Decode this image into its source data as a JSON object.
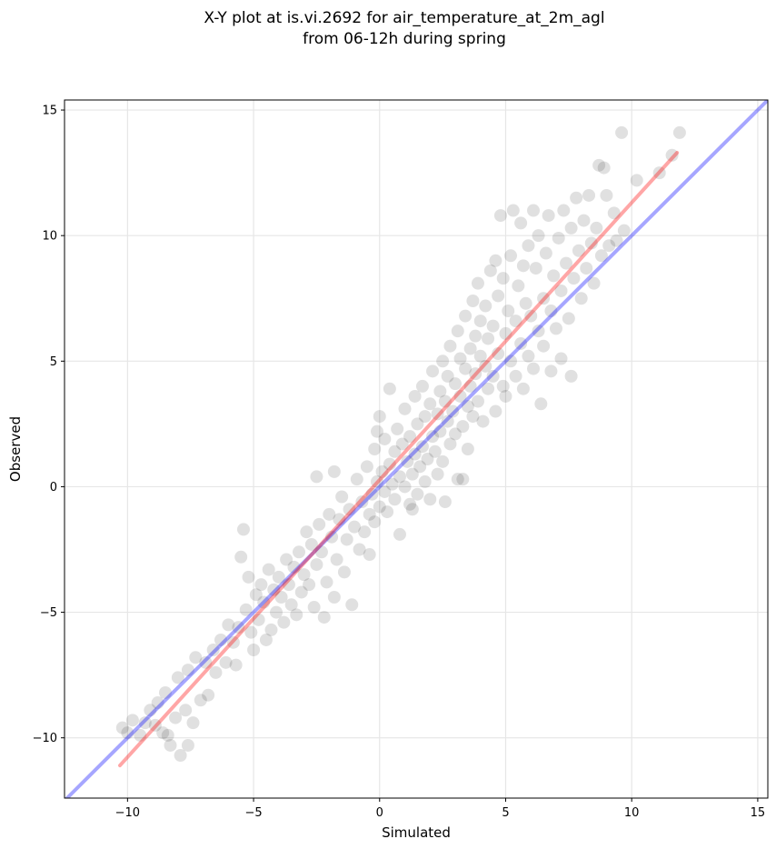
{
  "chart_data": {
    "type": "scatter",
    "title_line1": "X-Y plot at is.vi.2692 for air_temperature_at_2m_agl",
    "title_line2": "from 06-12h during spring",
    "xlabel": "Simulated",
    "ylabel": "Observed",
    "xlim": [
      -12.5,
      15.4
    ],
    "ylim": [
      -12.4,
      15.4
    ],
    "xticks": [
      -10,
      -5,
      0,
      5,
      10,
      15
    ],
    "yticks": [
      -10,
      -5,
      0,
      5,
      10,
      15
    ],
    "xtick_labels": [
      "−10",
      "−5",
      "0",
      "5",
      "10",
      "15"
    ],
    "ytick_labels": [
      "−10",
      "−5",
      "0",
      "5",
      "10",
      "15"
    ],
    "grid": true,
    "point_color": "#000000",
    "identity_line": {
      "color": "#0000ff",
      "from": [
        -12.5,
        -12.5
      ],
      "to": [
        15.4,
        15.4
      ]
    },
    "fit_line": {
      "color": "#ff0000",
      "from": [
        -10.3,
        -11.1
      ],
      "to": [
        11.8,
        13.3
      ]
    },
    "series": [
      {
        "points": [
          [
            -10.2,
            -9.6
          ],
          [
            -10.0,
            -9.8
          ],
          [
            -9.8,
            -9.3
          ],
          [
            -9.5,
            -9.9
          ],
          [
            -9.3,
            -9.4
          ],
          [
            -9.1,
            -8.9
          ],
          [
            -8.9,
            -9.5
          ],
          [
            -8.8,
            -8.6
          ],
          [
            -8.6,
            -9.8
          ],
          [
            -8.5,
            -8.2
          ],
          [
            -8.3,
            -10.3
          ],
          [
            -8.4,
            -9.9
          ],
          [
            -8.1,
            -9.2
          ],
          [
            -8.0,
            -7.6
          ],
          [
            -7.9,
            -10.7
          ],
          [
            -7.7,
            -8.9
          ],
          [
            -7.6,
            -10.3
          ],
          [
            -7.4,
            -9.4
          ],
          [
            -7.6,
            -7.3
          ],
          [
            -7.3,
            -6.8
          ],
          [
            -7.1,
            -8.5
          ],
          [
            -6.9,
            -7.0
          ],
          [
            -6.8,
            -8.3
          ],
          [
            -6.6,
            -6.5
          ],
          [
            -6.5,
            -7.4
          ],
          [
            -6.3,
            -6.1
          ],
          [
            -6.1,
            -7.0
          ],
          [
            -6.0,
            -5.5
          ],
          [
            -5.8,
            -6.2
          ],
          [
            -5.7,
            -7.1
          ],
          [
            -5.6,
            -5.6
          ],
          [
            -5.5,
            -2.8
          ],
          [
            -5.4,
            -1.7
          ],
          [
            -5.3,
            -4.9
          ],
          [
            -5.2,
            -3.6
          ],
          [
            -5.1,
            -5.8
          ],
          [
            -5.0,
            -6.5
          ],
          [
            -4.9,
            -4.3
          ],
          [
            -4.8,
            -5.3
          ],
          [
            -4.7,
            -3.9
          ],
          [
            -4.6,
            -4.6
          ],
          [
            -4.5,
            -6.1
          ],
          [
            -4.4,
            -3.3
          ],
          [
            -4.3,
            -5.7
          ],
          [
            -4.2,
            -4.1
          ],
          [
            -4.1,
            -5.0
          ],
          [
            -4.0,
            -3.6
          ],
          [
            -3.9,
            -4.4
          ],
          [
            -3.8,
            -5.4
          ],
          [
            -3.7,
            -2.9
          ],
          [
            -3.6,
            -3.9
          ],
          [
            -3.5,
            -4.7
          ],
          [
            -3.4,
            -3.2
          ],
          [
            -3.3,
            -5.1
          ],
          [
            -3.2,
            -2.6
          ],
          [
            -3.1,
            -4.2
          ],
          [
            -3.0,
            -3.5
          ],
          [
            -2.9,
            -1.8
          ],
          [
            -2.8,
            -3.9
          ],
          [
            -2.7,
            -2.3
          ],
          [
            -2.6,
            -4.8
          ],
          [
            -2.5,
            -3.1
          ],
          [
            -2.5,
            0.4
          ],
          [
            -2.4,
            -1.5
          ],
          [
            -2.3,
            -2.6
          ],
          [
            -2.2,
            -5.2
          ],
          [
            -2.1,
            -3.8
          ],
          [
            -2.0,
            -1.1
          ],
          [
            -1.9,
            -2.0
          ],
          [
            -1.8,
            -4.4
          ],
          [
            -1.8,
            0.6
          ],
          [
            -1.7,
            -2.9
          ],
          [
            -1.6,
            -1.3
          ],
          [
            -1.5,
            -0.4
          ],
          [
            -1.4,
            -3.4
          ],
          [
            -1.3,
            -2.1
          ],
          [
            -1.2,
            -0.9
          ],
          [
            -1.1,
            -4.7
          ],
          [
            -1.0,
            -1.6
          ],
          [
            -0.9,
            0.3
          ],
          [
            -0.8,
            -2.5
          ],
          [
            -0.7,
            -0.6
          ],
          [
            -0.6,
            -1.8
          ],
          [
            -0.5,
            0.8
          ],
          [
            -0.4,
            -1.1
          ],
          [
            -0.4,
            -2.7
          ],
          [
            -0.3,
            -0.3
          ],
          [
            -0.2,
            1.5
          ],
          [
            -0.2,
            -1.4
          ],
          [
            -0.1,
            0.2
          ],
          [
            0.0,
            -0.8
          ],
          [
            0.0,
            2.8
          ],
          [
            0.1,
            0.6
          ],
          [
            0.2,
            -0.2
          ],
          [
            0.2,
            1.9
          ],
          [
            0.3,
            -1.0
          ],
          [
            0.4,
            0.9
          ],
          [
            0.4,
            3.9
          ],
          [
            0.5,
            0.1
          ],
          [
            0.6,
            1.4
          ],
          [
            0.6,
            -0.5
          ],
          [
            0.7,
            2.3
          ],
          [
            0.8,
            0.4
          ],
          [
            0.8,
            -1.9
          ],
          [
            0.9,
            1.7
          ],
          [
            1.0,
            0.0
          ],
          [
            1.0,
            3.1
          ],
          [
            1.1,
            1.0
          ],
          [
            1.2,
            -0.7
          ],
          [
            1.2,
            2.0
          ],
          [
            1.3,
            0.5
          ],
          [
            1.4,
            3.6
          ],
          [
            1.4,
            1.3
          ],
          [
            1.5,
            -0.3
          ],
          [
            1.5,
            2.5
          ],
          [
            1.6,
            0.8
          ],
          [
            1.7,
            4.0
          ],
          [
            1.7,
            1.6
          ],
          [
            1.8,
            0.2
          ],
          [
            1.8,
            2.8
          ],
          [
            1.9,
            1.1
          ],
          [
            2.0,
            3.3
          ],
          [
            2.0,
            -0.5
          ],
          [
            2.1,
            2.0
          ],
          [
            2.1,
            4.6
          ],
          [
            2.2,
            1.4
          ],
          [
            2.3,
            2.9
          ],
          [
            2.3,
            0.5
          ],
          [
            2.4,
            3.8
          ],
          [
            2.4,
            2.2
          ],
          [
            2.5,
            5.0
          ],
          [
            2.5,
            1.0
          ],
          [
            2.6,
            3.4
          ],
          [
            2.7,
            2.6
          ],
          [
            2.7,
            4.4
          ],
          [
            2.8,
            1.7
          ],
          [
            2.8,
            5.6
          ],
          [
            2.9,
            3.0
          ],
          [
            3.0,
            2.1
          ],
          [
            3.0,
            4.1
          ],
          [
            3.1,
            6.2
          ],
          [
            3.1,
            0.3
          ],
          [
            3.2,
            3.6
          ],
          [
            3.2,
            5.1
          ],
          [
            3.3,
            2.4
          ],
          [
            3.4,
            4.7
          ],
          [
            3.4,
            6.8
          ],
          [
            3.5,
            3.2
          ],
          [
            3.5,
            1.5
          ],
          [
            3.6,
            5.5
          ],
          [
            3.6,
            4.0
          ],
          [
            3.7,
            7.4
          ],
          [
            3.7,
            2.8
          ],
          [
            3.8,
            6.0
          ],
          [
            3.8,
            4.5
          ],
          [
            3.9,
            8.1
          ],
          [
            3.9,
            3.4
          ],
          [
            4.0,
            5.2
          ],
          [
            4.0,
            6.6
          ],
          [
            4.1,
            2.6
          ],
          [
            4.2,
            4.8
          ],
          [
            4.2,
            7.2
          ],
          [
            4.3,
            3.9
          ],
          [
            4.3,
            5.9
          ],
          [
            4.4,
            8.6
          ],
          [
            4.5,
            4.4
          ],
          [
            4.5,
            6.4
          ],
          [
            4.6,
            3.0
          ],
          [
            4.7,
            7.6
          ],
          [
            4.7,
            5.3
          ],
          [
            4.8,
            10.8
          ],
          [
            4.9,
            4.0
          ],
          [
            4.9,
            8.3
          ],
          [
            5.0,
            6.1
          ],
          [
            5.0,
            3.6
          ],
          [
            5.1,
            7.0
          ],
          [
            5.2,
            5.0
          ],
          [
            5.2,
            9.2
          ],
          [
            5.3,
            11.0
          ],
          [
            5.4,
            6.6
          ],
          [
            5.4,
            4.4
          ],
          [
            5.5,
            8.0
          ],
          [
            5.6,
            5.7
          ],
          [
            5.6,
            10.5
          ],
          [
            5.7,
            3.9
          ],
          [
            5.8,
            7.3
          ],
          [
            5.9,
            9.6
          ],
          [
            5.9,
            5.2
          ],
          [
            6.0,
            6.8
          ],
          [
            6.1,
            11.0
          ],
          [
            6.1,
            4.7
          ],
          [
            6.2,
            8.7
          ],
          [
            6.3,
            6.2
          ],
          [
            6.3,
            10.0
          ],
          [
            6.4,
            3.3
          ],
          [
            6.5,
            7.5
          ],
          [
            6.5,
            5.6
          ],
          [
            6.6,
            9.3
          ],
          [
            6.7,
            10.8
          ],
          [
            6.8,
            7.0
          ],
          [
            6.8,
            4.6
          ],
          [
            6.9,
            8.4
          ],
          [
            7.0,
            6.3
          ],
          [
            7.1,
            9.9
          ],
          [
            7.2,
            7.8
          ],
          [
            7.2,
            5.1
          ],
          [
            7.3,
            11.0
          ],
          [
            7.4,
            8.9
          ],
          [
            7.5,
            6.7
          ],
          [
            7.6,
            10.3
          ],
          [
            7.6,
            4.4
          ],
          [
            7.7,
            8.3
          ],
          [
            7.8,
            11.5
          ],
          [
            7.9,
            9.4
          ],
          [
            8.0,
            7.5
          ],
          [
            8.1,
            10.6
          ],
          [
            8.2,
            8.7
          ],
          [
            8.3,
            11.6
          ],
          [
            8.4,
            9.7
          ],
          [
            8.5,
            8.1
          ],
          [
            8.6,
            10.3
          ],
          [
            8.7,
            12.8
          ],
          [
            8.8,
            9.2
          ],
          [
            8.9,
            12.7
          ],
          [
            9.0,
            11.6
          ],
          [
            9.1,
            9.6
          ],
          [
            9.3,
            10.9
          ],
          [
            9.4,
            9.8
          ],
          [
            9.6,
            14.1
          ],
          [
            9.7,
            10.2
          ],
          [
            10.2,
            12.2
          ],
          [
            11.1,
            12.5
          ],
          [
            11.6,
            13.2
          ],
          [
            11.9,
            14.1
          ],
          [
            2.6,
            -0.6
          ],
          [
            1.3,
            -0.9
          ],
          [
            -0.1,
            2.2
          ],
          [
            3.3,
            0.3
          ],
          [
            4.6,
            9.0
          ],
          [
            5.7,
            8.8
          ]
        ]
      }
    ]
  }
}
